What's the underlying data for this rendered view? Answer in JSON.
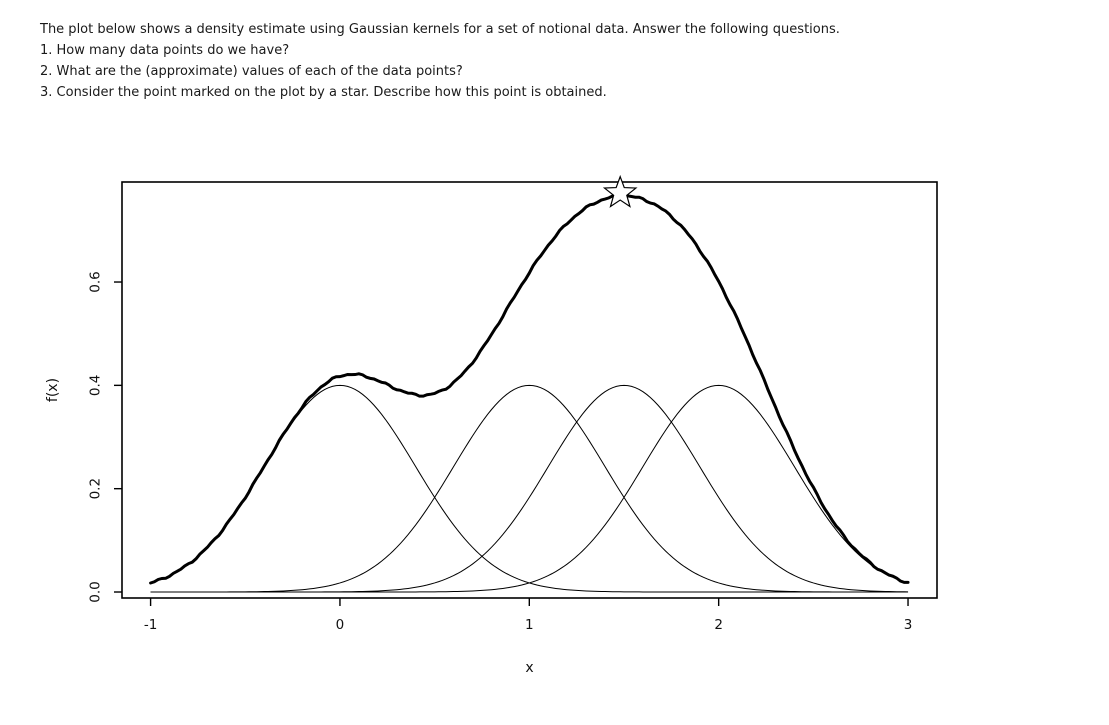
{
  "instructions": {
    "intro": "The plot below shows a density estimate using Gaussian kernels for a set of notional data. Answer the following questions.",
    "q1": "1. How many data points do we have?",
    "q2": "2. What are the (approximate) values of each of the data points?",
    "q3": "3. Consider the point marked on the plot by a star. Describe how this point is obtained."
  },
  "chart_data": {
    "type": "line",
    "title": "",
    "xlabel": "x",
    "ylabel": "f(x)",
    "xlim": [
      -1.151,
      3.153
    ],
    "ylim": [
      -0.0116,
      0.7936
    ],
    "curve_x_range": [
      -1,
      3
    ],
    "x_tick_values": [
      -1,
      0,
      1,
      2,
      3
    ],
    "x_tick_labels": [
      "-1",
      "0",
      "1",
      "2",
      "3"
    ],
    "y_tick_values": [
      0.0,
      0.2,
      0.4,
      0.6
    ],
    "y_tick_labels": [
      "0.0",
      "0.2",
      "0.4",
      "0.6"
    ],
    "grid": false,
    "legend": null,
    "n_data_points": 4,
    "data_points": [
      0,
      1,
      1.5,
      2
    ],
    "kernel": {
      "shape": "gaussian",
      "sigma": 0.4,
      "peak_height": 0.4
    },
    "kernel_curves": [
      {
        "center": 0,
        "peak_y": 0.4
      },
      {
        "center": 1,
        "peak_y": 0.4
      },
      {
        "center": 1.5,
        "peak_y": 0.4
      },
      {
        "center": 2,
        "peak_y": 0.4
      }
    ],
    "density_curve": {
      "definition": "sum_of_kernels",
      "local_max_1": {
        "x": 0.05,
        "y": 0.42
      },
      "local_min": {
        "x": 0.5,
        "y": 0.385
      },
      "peak": {
        "x": 1.48,
        "y": 0.766
      }
    },
    "star_marker": {
      "x": 1.48,
      "y": 0.772
    },
    "line_color": "#000000",
    "background_color": "#ffffff"
  }
}
